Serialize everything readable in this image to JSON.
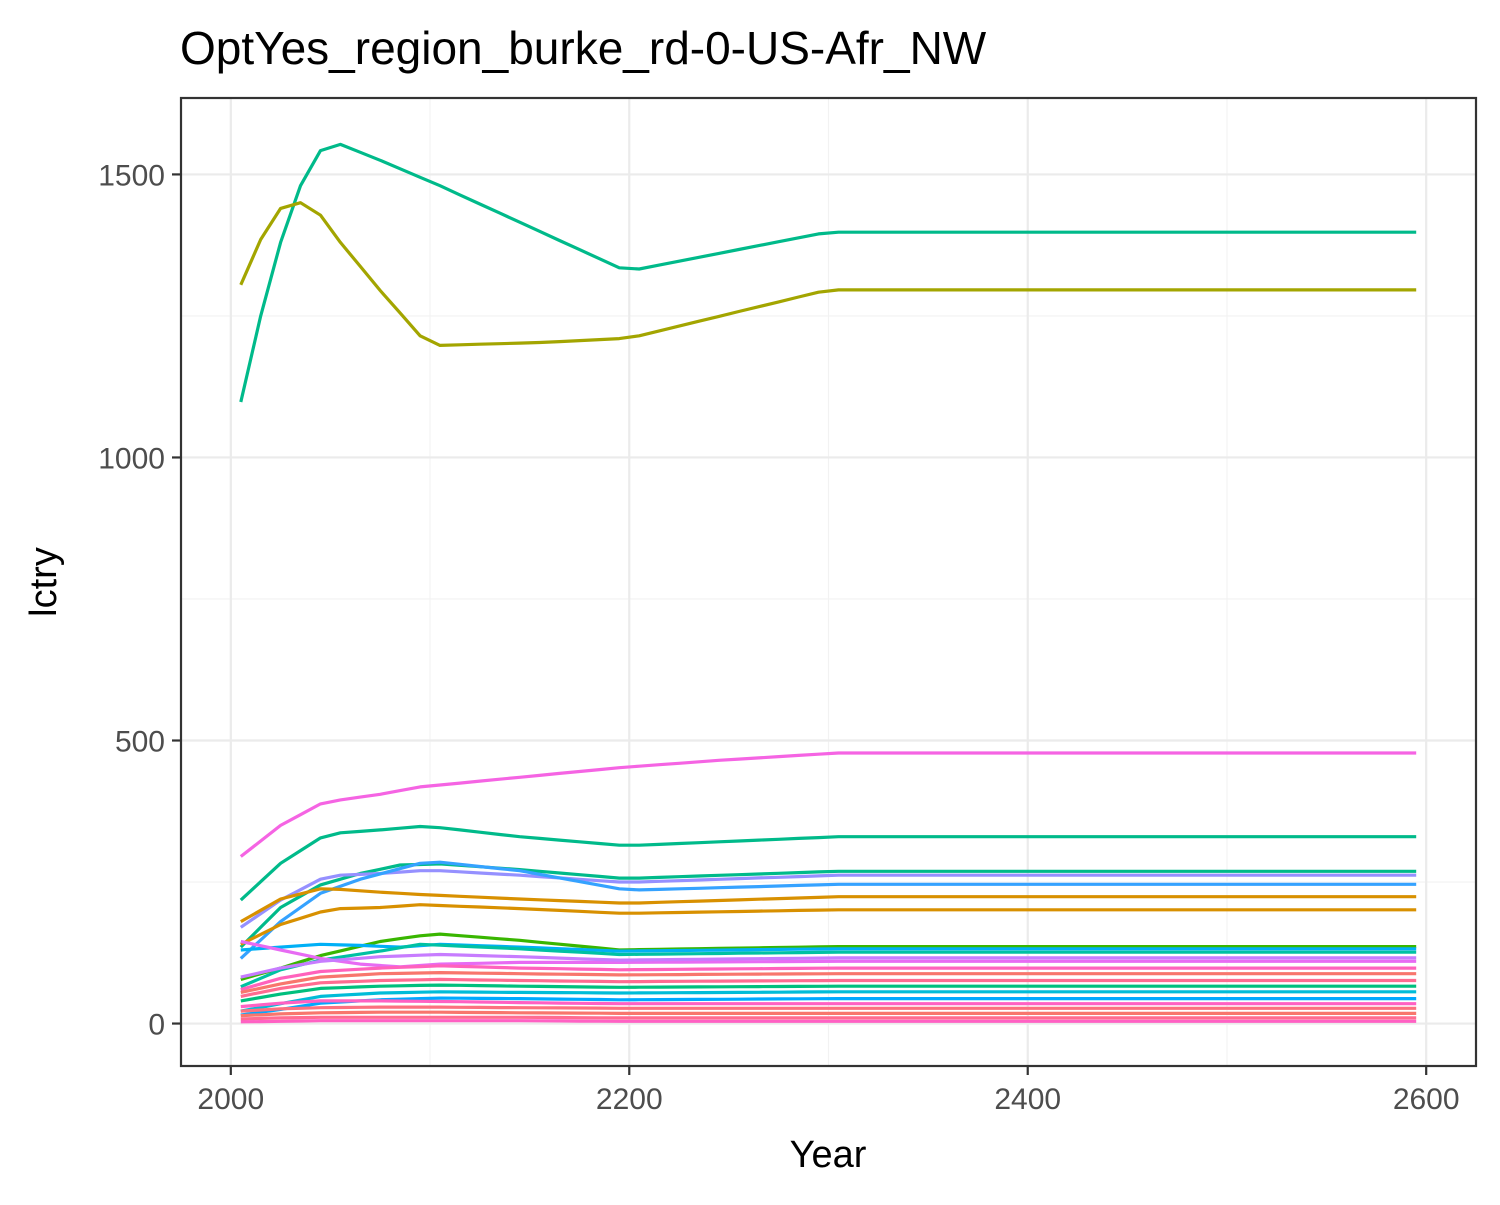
{
  "chart_data": {
    "type": "line",
    "title": "OptYes_region_burke_rd-0-US-Afr_NW",
    "xlabel": "Year",
    "ylabel": "lctry",
    "xlim": [
      1975,
      2625
    ],
    "ylim": [
      -75,
      1635
    ],
    "x_ticks": [
      2000,
      2200,
      2400,
      2600
    ],
    "y_ticks": [
      0,
      500,
      1000,
      1500
    ],
    "x_tick_labels": [
      "2000",
      "2200",
      "2400",
      "2600"
    ],
    "y_tick_labels": [
      "0",
      "500",
      "1000",
      "1500"
    ],
    "x_minor": [
      2100,
      2300,
      2500
    ],
    "y_minor": [
      250,
      750,
      1250
    ],
    "grid": true,
    "legend": "none",
    "x": [
      2005,
      2015,
      2025,
      2035,
      2045,
      2055,
      2065,
      2075,
      2085,
      2095,
      2105,
      2115,
      2125,
      2135,
      2145,
      2155,
      2165,
      2175,
      2185,
      2195,
      2205,
      2215,
      2225,
      2235,
      2245,
      2255,
      2265,
      2275,
      2285,
      2295,
      2305,
      2315,
      2325,
      2335,
      2345,
      2355,
      2365,
      2375,
      2385,
      2395,
      2405,
      2415,
      2425,
      2435,
      2445,
      2455,
      2465,
      2475,
      2485,
      2495,
      2505,
      2515,
      2525,
      2535,
      2545,
      2555,
      2565,
      2575,
      2585,
      2595
    ],
    "series": [
      {
        "color": "#00BA8A",
        "anchors": [
          [
            2005,
            1098
          ],
          [
            2015,
            1250
          ],
          [
            2025,
            1380
          ],
          [
            2035,
            1480
          ],
          [
            2045,
            1542
          ],
          [
            2055,
            1553
          ],
          [
            2075,
            1525
          ],
          [
            2105,
            1480
          ],
          [
            2195,
            1335
          ],
          [
            2205,
            1333
          ],
          [
            2295,
            1395
          ],
          [
            2305,
            1398
          ],
          [
            2595,
            1398
          ]
        ]
      },
      {
        "color": "#A3A500",
        "anchors": [
          [
            2005,
            1305
          ],
          [
            2015,
            1385
          ],
          [
            2025,
            1440
          ],
          [
            2035,
            1450
          ],
          [
            2045,
            1428
          ],
          [
            2055,
            1380
          ],
          [
            2075,
            1295
          ],
          [
            2095,
            1215
          ],
          [
            2105,
            1198
          ],
          [
            2155,
            1203
          ],
          [
            2195,
            1210
          ],
          [
            2205,
            1215
          ],
          [
            2295,
            1292
          ],
          [
            2305,
            1296
          ],
          [
            2595,
            1296
          ]
        ]
      },
      {
        "color": "#F564E3",
        "anchors": [
          [
            2005,
            295
          ],
          [
            2025,
            350
          ],
          [
            2045,
            388
          ],
          [
            2055,
            395
          ],
          [
            2075,
            405
          ],
          [
            2095,
            418
          ],
          [
            2145,
            435
          ],
          [
            2195,
            452
          ],
          [
            2245,
            465
          ],
          [
            2305,
            478
          ],
          [
            2595,
            478
          ]
        ]
      },
      {
        "color": "#00BA8A",
        "anchors": [
          [
            2005,
            218
          ],
          [
            2025,
            283
          ],
          [
            2045,
            328
          ],
          [
            2055,
            337
          ],
          [
            2075,
            342
          ],
          [
            2095,
            348
          ],
          [
            2105,
            346
          ],
          [
            2145,
            330
          ],
          [
            2195,
            315
          ],
          [
            2205,
            315
          ],
          [
            2305,
            330
          ],
          [
            2595,
            330
          ]
        ]
      },
      {
        "color": "#00BA8A",
        "anchors": [
          [
            2005,
            135
          ],
          [
            2025,
            205
          ],
          [
            2045,
            245
          ],
          [
            2065,
            265
          ],
          [
            2085,
            280
          ],
          [
            2105,
            282
          ],
          [
            2145,
            272
          ],
          [
            2195,
            257
          ],
          [
            2205,
            257
          ],
          [
            2305,
            269
          ],
          [
            2595,
            269
          ]
        ]
      },
      {
        "color": "#9590FF",
        "anchors": [
          [
            2005,
            170
          ],
          [
            2025,
            218
          ],
          [
            2045,
            255
          ],
          [
            2055,
            262
          ],
          [
            2075,
            265
          ],
          [
            2095,
            270
          ],
          [
            2105,
            270
          ],
          [
            2145,
            262
          ],
          [
            2195,
            250
          ],
          [
            2205,
            250
          ],
          [
            2305,
            262
          ],
          [
            2595,
            262
          ]
        ]
      },
      {
        "color": "#35A2FF",
        "anchors": [
          [
            2005,
            115
          ],
          [
            2025,
            180
          ],
          [
            2045,
            230
          ],
          [
            2065,
            255
          ],
          [
            2095,
            283
          ],
          [
            2105,
            285
          ],
          [
            2145,
            270
          ],
          [
            2195,
            238
          ],
          [
            2205,
            236
          ],
          [
            2305,
            246
          ],
          [
            2595,
            246
          ]
        ]
      },
      {
        "color": "#D89000",
        "anchors": [
          [
            2005,
            180
          ],
          [
            2025,
            220
          ],
          [
            2045,
            238
          ],
          [
            2055,
            237
          ],
          [
            2075,
            232
          ],
          [
            2095,
            228
          ],
          [
            2145,
            220
          ],
          [
            2195,
            213
          ],
          [
            2205,
            213
          ],
          [
            2305,
            224
          ],
          [
            2595,
            224
          ]
        ]
      },
      {
        "color": "#D89000",
        "anchors": [
          [
            2005,
            140
          ],
          [
            2025,
            175
          ],
          [
            2045,
            197
          ],
          [
            2055,
            203
          ],
          [
            2075,
            205
          ],
          [
            2095,
            210
          ],
          [
            2145,
            203
          ],
          [
            2195,
            195
          ],
          [
            2205,
            195
          ],
          [
            2305,
            201
          ],
          [
            2595,
            201
          ]
        ]
      },
      {
        "color": "#39B600",
        "anchors": [
          [
            2005,
            78
          ],
          [
            2025,
            98
          ],
          [
            2045,
            120
          ],
          [
            2075,
            145
          ],
          [
            2095,
            155
          ],
          [
            2105,
            158
          ],
          [
            2145,
            147
          ],
          [
            2195,
            130
          ],
          [
            2305,
            136
          ],
          [
            2595,
            136
          ]
        ]
      },
      {
        "color": "#00B0F6",
        "anchors": [
          [
            2005,
            130
          ],
          [
            2025,
            135
          ],
          [
            2045,
            140
          ],
          [
            2065,
            138
          ],
          [
            2085,
            135
          ],
          [
            2105,
            140
          ],
          [
            2145,
            135
          ],
          [
            2195,
            128
          ],
          [
            2305,
            132
          ],
          [
            2595,
            132
          ]
        ]
      },
      {
        "color": "#00C1A3",
        "anchors": [
          [
            2005,
            65
          ],
          [
            2025,
            95
          ],
          [
            2045,
            112
          ],
          [
            2075,
            128
          ],
          [
            2095,
            140
          ],
          [
            2145,
            132
          ],
          [
            2195,
            122
          ],
          [
            2305,
            126
          ],
          [
            2595,
            126
          ]
        ]
      },
      {
        "color": "#E76BF3",
        "anchors": [
          [
            2005,
            145
          ],
          [
            2025,
            130
          ],
          [
            2045,
            115
          ],
          [
            2065,
            105
          ],
          [
            2085,
            100
          ],
          [
            2105,
            105
          ],
          [
            2145,
            108
          ],
          [
            2195,
            108
          ],
          [
            2305,
            110
          ],
          [
            2595,
            110
          ]
        ]
      },
      {
        "color": "#C77CFF",
        "anchors": [
          [
            2005,
            82
          ],
          [
            2025,
            98
          ],
          [
            2045,
            110
          ],
          [
            2075,
            118
          ],
          [
            2105,
            122
          ],
          [
            2145,
            118
          ],
          [
            2195,
            112
          ],
          [
            2305,
            116
          ],
          [
            2595,
            116
          ]
        ]
      },
      {
        "color": "#FF62BC",
        "anchors": [
          [
            2005,
            60
          ],
          [
            2025,
            80
          ],
          [
            2045,
            92
          ],
          [
            2075,
            98
          ],
          [
            2105,
            102
          ],
          [
            2145,
            98
          ],
          [
            2195,
            95
          ],
          [
            2305,
            98
          ],
          [
            2595,
            98
          ]
        ]
      },
      {
        "color": "#F8766D",
        "anchors": [
          [
            2005,
            55
          ],
          [
            2025,
            70
          ],
          [
            2045,
            82
          ],
          [
            2075,
            88
          ],
          [
            2105,
            90
          ],
          [
            2145,
            88
          ],
          [
            2195,
            86
          ],
          [
            2305,
            88
          ],
          [
            2595,
            88
          ]
        ]
      },
      {
        "color": "#FF6C91",
        "anchors": [
          [
            2005,
            48
          ],
          [
            2025,
            62
          ],
          [
            2045,
            72
          ],
          [
            2075,
            76
          ],
          [
            2105,
            78
          ],
          [
            2145,
            76
          ],
          [
            2195,
            74
          ],
          [
            2305,
            76
          ],
          [
            2595,
            76
          ]
        ]
      },
      {
        "color": "#00BF7D",
        "anchors": [
          [
            2005,
            40
          ],
          [
            2025,
            52
          ],
          [
            2045,
            62
          ],
          [
            2075,
            66
          ],
          [
            2105,
            68
          ],
          [
            2145,
            66
          ],
          [
            2195,
            64
          ],
          [
            2305,
            66
          ],
          [
            2595,
            66
          ]
        ]
      },
      {
        "color": "#00BCD8",
        "anchors": [
          [
            2005,
            22
          ],
          [
            2025,
            35
          ],
          [
            2045,
            48
          ],
          [
            2075,
            54
          ],
          [
            2105,
            56
          ],
          [
            2145,
            55
          ],
          [
            2195,
            54
          ],
          [
            2305,
            56
          ],
          [
            2595,
            56
          ]
        ]
      },
      {
        "color": "#00A9FF",
        "anchors": [
          [
            2005,
            15
          ],
          [
            2025,
            25
          ],
          [
            2045,
            36
          ],
          [
            2075,
            42
          ],
          [
            2105,
            45
          ],
          [
            2145,
            44
          ],
          [
            2195,
            42
          ],
          [
            2305,
            44
          ],
          [
            2595,
            44
          ]
        ]
      },
      {
        "color": "#FF61C3",
        "anchors": [
          [
            2005,
            30
          ],
          [
            2025,
            36
          ],
          [
            2045,
            40
          ],
          [
            2075,
            40
          ],
          [
            2105,
            39
          ],
          [
            2145,
            37
          ],
          [
            2195,
            35
          ],
          [
            2305,
            35
          ],
          [
            2595,
            35
          ]
        ]
      },
      {
        "color": "#FC717F",
        "anchors": [
          [
            2005,
            22
          ],
          [
            2025,
            26
          ],
          [
            2045,
            28
          ],
          [
            2075,
            29
          ],
          [
            2105,
            29
          ],
          [
            2145,
            28
          ],
          [
            2195,
            27
          ],
          [
            2305,
            27
          ],
          [
            2595,
            27
          ]
        ]
      },
      {
        "color": "#F8766D",
        "anchors": [
          [
            2005,
            14
          ],
          [
            2025,
            17
          ],
          [
            2045,
            19
          ],
          [
            2075,
            20
          ],
          [
            2105,
            20
          ],
          [
            2145,
            19
          ],
          [
            2195,
            18
          ],
          [
            2305,
            18
          ],
          [
            2595,
            18
          ]
        ]
      },
      {
        "color": "#FF6C91",
        "anchors": [
          [
            2005,
            8
          ],
          [
            2025,
            10
          ],
          [
            2045,
            11
          ],
          [
            2075,
            11
          ],
          [
            2105,
            11
          ],
          [
            2145,
            11
          ],
          [
            2195,
            10
          ],
          [
            2305,
            10
          ],
          [
            2595,
            10
          ]
        ]
      },
      {
        "color": "#FF61C3",
        "anchors": [
          [
            2005,
            3
          ],
          [
            2025,
            4
          ],
          [
            2045,
            5
          ],
          [
            2075,
            5
          ],
          [
            2105,
            5
          ],
          [
            2145,
            5
          ],
          [
            2195,
            4
          ],
          [
            2305,
            4
          ],
          [
            2595,
            4
          ]
        ]
      }
    ]
  }
}
